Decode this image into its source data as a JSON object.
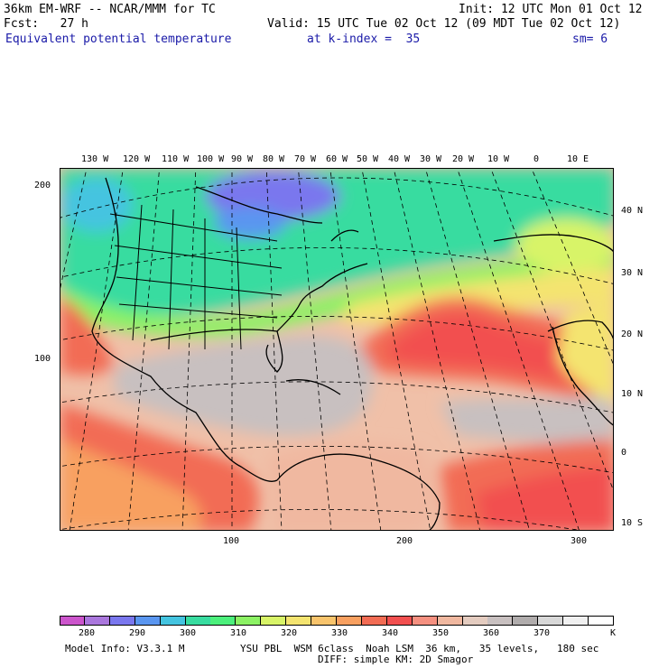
{
  "header": {
    "model": "36km EM-WRF -- NCAR/MMM for TC",
    "init": "Init: 12 UTC Mon 01 Oct 12",
    "fcst": "Fcst:   27 h",
    "valid": "Valid: 15 UTC Tue 02 Oct 12 (09 MDT Tue 02 Oct 12)",
    "field": "Equivalent potential temperature",
    "level": "at k-index =  35",
    "smoothing": "sm= 6"
  },
  "map": {
    "top_lon_labels": [
      "130 W",
      "120 W",
      "110 W",
      "100 W",
      "90 W",
      "80 W",
      "70 W",
      "60 W",
      "50 W",
      "40 W",
      "30 W",
      "20 W",
      "10 W",
      "0",
      "10 E"
    ],
    "right_lat_labels": [
      "40 N",
      "30 N",
      "20 N",
      "10 N",
      "0",
      "10 S"
    ],
    "left_grid_labels": [
      "200",
      "100"
    ],
    "bottom_grid_labels": [
      "100",
      "200",
      "300"
    ]
  },
  "colorbar": {
    "labels": [
      "280",
      "290",
      "300",
      "310",
      "320",
      "330",
      "340",
      "350",
      "360",
      "370"
    ],
    "unit": "K",
    "colors": [
      "#cc55cc",
      "#aa77dd",
      "#7a77ee",
      "#5a96f0",
      "#44c4e0",
      "#38dca0",
      "#4cf07c",
      "#8cf264",
      "#d8f468",
      "#f4e470",
      "#f8c46c",
      "#f8a060",
      "#f26c54",
      "#f25050",
      "#f59080",
      "#f0b8a0",
      "#e4ccc0",
      "#c8c0c0",
      "#b0acac",
      "#d8d8d8",
      "#f0f0f0",
      "#ffffff"
    ]
  },
  "footer": {
    "model_info": "Model Info: V3.3.1 M",
    "physics": "YSU PBL  WSM 6class  Noah LSM  36 km,   35 levels,   180 sec",
    "diffusion": "DIFF: simple KM: 2D Smagor"
  }
}
